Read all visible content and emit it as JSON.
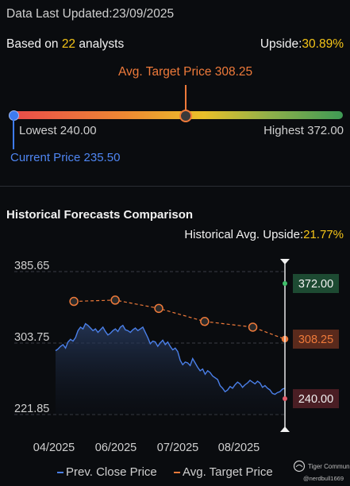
{
  "header": {
    "updated_label": "Data Last Updated:",
    "updated_value": "23/09/2025",
    "analysts_prefix": "Based on ",
    "analysts_count": "22",
    "analysts_suffix": " analysts",
    "upside_label": "Upside:",
    "upside_value": "30.89%"
  },
  "range": {
    "avg_target_label": "Avg. Target Price 308.25",
    "lowest_label": "Lowest 240.00",
    "highest_label": "Highest 372.00",
    "current_label": "Current Price 235.50",
    "low": 240.0,
    "high": 372.0,
    "avg_target": 308.25,
    "current": 235.5
  },
  "historical": {
    "title": "Historical Forecasts Comparison",
    "avg_upside_label": "Historical Avg. Upside:",
    "avg_upside_value": "21.77%"
  },
  "legend": {
    "close_label": "Prev. Close Price",
    "target_label": "Avg. Target Price"
  },
  "brand": {
    "name": "Tiger Community",
    "handle": "@nerdbull1669"
  },
  "colors": {
    "close_line": "#4a7fe8",
    "target_line": "#ef7a3a",
    "high_label_bg": "#1d4a32",
    "target_label_bg": "#5a2a1c",
    "low_label_bg": "#4a1e24"
  },
  "chart_data": {
    "type": "line",
    "x_labels": [
      "04/2025",
      "06/2025",
      "07/2025",
      "08/2025"
    ],
    "y_ticks": [
      "385.65",
      "303.75",
      "221.85"
    ],
    "ylim": [
      221.85,
      385.65
    ],
    "end_labels": {
      "high": "372.00",
      "target": "308.25",
      "low": "240.00"
    },
    "series": [
      {
        "name": "Prev. Close Price",
        "values": [
          295,
          297,
          300,
          302,
          298,
          305,
          308,
          306,
          310,
          318,
          322,
          320,
          326,
          324,
          321,
          318,
          320,
          316,
          319,
          322,
          317,
          313,
          315,
          318,
          320,
          317,
          322,
          324,
          319,
          318,
          316,
          319,
          321,
          318,
          320,
          322,
          316,
          310,
          303,
          306,
          305,
          300,
          304,
          307,
          302,
          305,
          300,
          296,
          298,
          294,
          284,
          279,
          282,
          281,
          278,
          286,
          281,
          276,
          272,
          274,
          268,
          272,
          270,
          266,
          264,
          262,
          255,
          252,
          248,
          250,
          254,
          252,
          256,
          259,
          257,
          253,
          256,
          258,
          261,
          259,
          257,
          260,
          258,
          253,
          255,
          252,
          250,
          246,
          245,
          247,
          248,
          251,
          252
        ],
        "x_range": [
          0,
          1
        ]
      },
      {
        "name": "Avg. Target Price",
        "values": [
          351.5,
          353.0,
          343.5,
          328.5,
          322.0,
          308.25
        ],
        "x": [
          0.08,
          0.26,
          0.45,
          0.65,
          0.86,
          1.0
        ]
      }
    ]
  }
}
